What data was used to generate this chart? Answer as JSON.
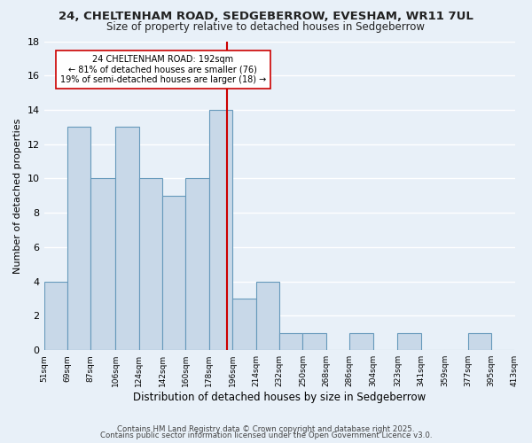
{
  "title": "24, CHELTENHAM ROAD, SEDGEBERROW, EVESHAM, WR11 7UL",
  "subtitle": "Size of property relative to detached houses in Sedgeberrow",
  "xlabel": "Distribution of detached houses by size in Sedgeberrow",
  "ylabel": "Number of detached properties",
  "bin_edges": [
    51,
    69,
    87,
    106,
    124,
    142,
    160,
    178,
    196,
    214,
    232,
    250,
    268,
    286,
    304,
    323,
    341,
    359,
    377,
    395,
    413
  ],
  "bin_labels": [
    "51sqm",
    "69sqm",
    "87sqm",
    "106sqm",
    "124sqm",
    "142sqm",
    "160sqm",
    "178sqm",
    "196sqm",
    "214sqm",
    "232sqm",
    "250sqm",
    "268sqm",
    "286sqm",
    "304sqm",
    "323sqm",
    "341sqm",
    "359sqm",
    "377sqm",
    "395sqm",
    "413sqm"
  ],
  "bar_heights": [
    4,
    13,
    10,
    13,
    10,
    9,
    10,
    14,
    3,
    4,
    1,
    1,
    0,
    1,
    0,
    1,
    0,
    0,
    1,
    0
  ],
  "bar_color": "#c8d8e8",
  "bar_edge_color": "#6699bb",
  "vline_x": 192,
  "vline_color": "#cc0000",
  "annotation_text": "24 CHELTENHAM ROAD: 192sqm\n← 81% of detached houses are smaller (76)\n19% of semi-detached houses are larger (18) →",
  "annotation_box_color": "#ffffff",
  "annotation_box_edge": "#cc0000",
  "ylim": [
    0,
    18
  ],
  "yticks": [
    0,
    2,
    4,
    6,
    8,
    10,
    12,
    14,
    16,
    18
  ],
  "background_color": "#e8f0f8",
  "grid_color": "#ffffff",
  "footer_line1": "Contains HM Land Registry data © Crown copyright and database right 2025.",
  "footer_line2": "Contains public sector information licensed under the Open Government Licence v3.0."
}
